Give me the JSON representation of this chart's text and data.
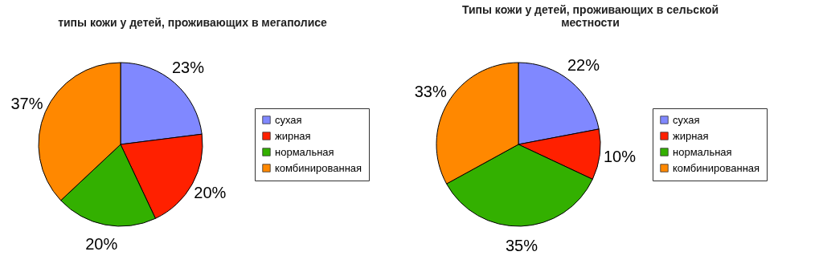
{
  "chart_data": [
    {
      "type": "pie",
      "title": "типы кожи у детей, проживающих в мегаполисе",
      "categories": [
        "сухая",
        "жирная",
        "нормальная",
        "комбинированная"
      ],
      "values": [
        23,
        20,
        20,
        37
      ],
      "value_labels": [
        "23%",
        "20%",
        "20%",
        "37%"
      ],
      "colors": [
        "#8088ff",
        "#ff2000",
        "#33b000",
        "#ff8800"
      ],
      "legend": "right"
    },
    {
      "type": "pie",
      "title": "Типы кожи у детей, проживающих в сельской местности",
      "categories": [
        "сухая",
        "жирная",
        "нормальная",
        "комбинированная"
      ],
      "values": [
        22,
        10,
        35,
        33
      ],
      "value_labels": [
        "22%",
        "10%",
        "35%",
        "33%"
      ],
      "colors": [
        "#8088ff",
        "#ff2000",
        "#33b000",
        "#ff8800"
      ],
      "legend": "right"
    }
  ]
}
